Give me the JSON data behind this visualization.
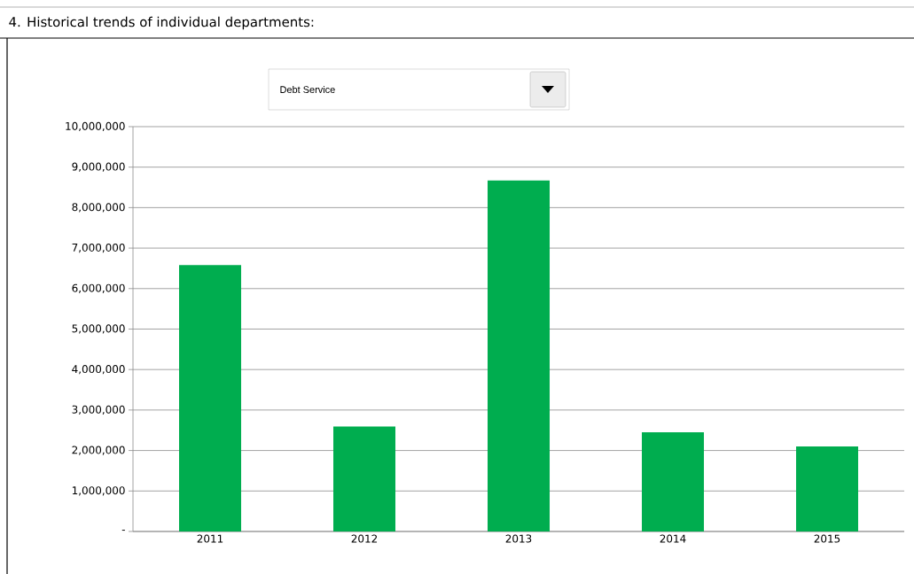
{
  "chart_data": {
    "type": "bar",
    "title": "4. Historical trends of individual departments:",
    "subtitle": "Debt Service",
    "categories": [
      "2011",
      "2012",
      "2013",
      "2014",
      "2015"
    ],
    "values": [
      6580000,
      2590000,
      8670000,
      2450000,
      2100000
    ],
    "color": "#00ad4f",
    "ylim": [
      0,
      10000000
    ],
    "yticks": [
      {
        "value": 0,
        "label": "-"
      },
      {
        "value": 1000000,
        "label": "1,000,000"
      },
      {
        "value": 2000000,
        "label": "2,000,000"
      },
      {
        "value": 3000000,
        "label": "3,000,000"
      },
      {
        "value": 4000000,
        "label": "4,000,000"
      },
      {
        "value": 5000000,
        "label": "5,000,000"
      },
      {
        "value": 6000000,
        "label": "6,000,000"
      },
      {
        "value": 7000000,
        "label": "7,000,000"
      },
      {
        "value": 8000000,
        "label": "8,000,000"
      },
      {
        "value": 9000000,
        "label": "9,000,000"
      },
      {
        "value": 10000000,
        "label": "10,000,000"
      }
    ],
    "grid": true
  }
}
